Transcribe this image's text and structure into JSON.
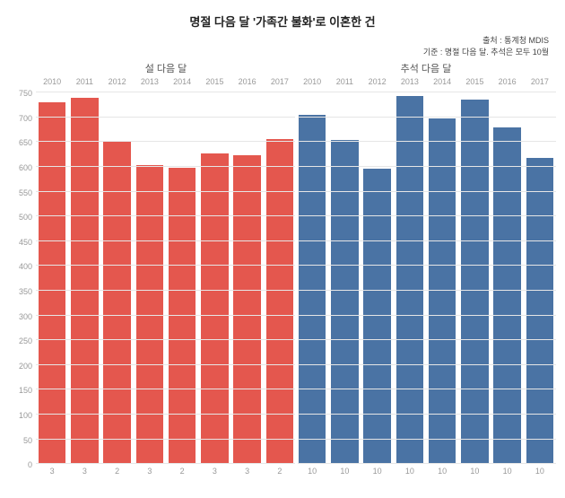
{
  "title": "명절 다음 달 '가족간 불화'로 이혼한 건",
  "source_label": "출처 : 통계청 MDIS",
  "criteria_label": "기준 : 명절 다음 달. 추석은 모두 10월",
  "chart": {
    "type": "bar",
    "ylim": [
      0,
      750
    ],
    "ytick_step": 50,
    "grid_color": "#e6e6e6",
    "background_color": "#ffffff",
    "axis_text_color": "#999999",
    "title_color": "#222222",
    "bar_width": 0.84,
    "groups": [
      {
        "title": "설 다음 달",
        "color": "#e4574e",
        "bars": [
          {
            "year": "2010",
            "month": "3",
            "value": 732
          },
          {
            "year": "2011",
            "month": "3",
            "value": 742
          },
          {
            "year": "2012",
            "month": "2",
            "value": 655
          },
          {
            "year": "2013",
            "month": "3",
            "value": 605
          },
          {
            "year": "2014",
            "month": "2",
            "value": 600
          },
          {
            "year": "2015",
            "month": "3",
            "value": 628
          },
          {
            "year": "2016",
            "month": "3",
            "value": 625
          },
          {
            "year": "2017",
            "month": "2",
            "value": 658
          }
        ]
      },
      {
        "title": "추석 다음 달",
        "color": "#4a73a4",
        "bars": [
          {
            "year": "2010",
            "month": "10",
            "value": 706
          },
          {
            "year": "2011",
            "month": "10",
            "value": 656
          },
          {
            "year": "2012",
            "month": "10",
            "value": 598
          },
          {
            "year": "2013",
            "month": "10",
            "value": 745
          },
          {
            "year": "2014",
            "month": "10",
            "value": 700
          },
          {
            "year": "2015",
            "month": "10",
            "value": 738
          },
          {
            "year": "2016",
            "month": "10",
            "value": 682
          },
          {
            "year": "2017",
            "month": "10",
            "value": 620
          }
        ]
      }
    ]
  }
}
